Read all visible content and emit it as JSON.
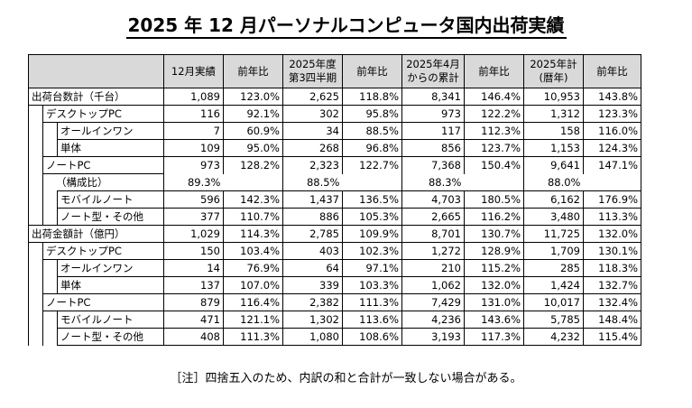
{
  "title": "2025 年 12 月パーソナルコンピュータ国内出荷実績",
  "headers": [
    "",
    "12月実績",
    "前年比",
    "2025年度 第3四半期",
    "前年比",
    "2025年4月 からの累計",
    "前年比",
    "2025年計 (暦年)",
    "前年比"
  ],
  "rows": [
    {
      "level": 0,
      "label": "出荷台数計（千台）",
      "values": [
        "1,089",
        "123.0%",
        "2,625",
        "118.8%",
        "8,341",
        "146.4%",
        "10,953",
        "143.8%"
      ]
    },
    {
      "level": 1,
      "label": "デスクトップPC",
      "values": [
        "116",
        "92.1%",
        "302",
        "95.8%",
        "973",
        "122.2%",
        "1,312",
        "123.3%"
      ]
    },
    {
      "level": 2,
      "label": "オールインワン",
      "values": [
        "7",
        "60.9%",
        "34",
        "88.5%",
        "117",
        "112.3%",
        "158",
        "116.0%"
      ]
    },
    {
      "level": 2,
      "label": "単体",
      "values": [
        "109",
        "95.0%",
        "268",
        "96.8%",
        "856",
        "123.7%",
        "1,153",
        "124.3%"
      ]
    },
    {
      "level": 1,
      "label": "ノートPC",
      "values": [
        "973",
        "128.2%",
        "2,323",
        "122.7%",
        "7,368",
        "150.4%",
        "9,641",
        "147.1%"
      ]
    },
    {
      "level": 1,
      "label": "（構成比）",
      "ratio": true,
      "values": [
        "89.3%",
        "",
        "88.5%",
        "",
        "88.3%",
        "",
        "88.0%",
        ""
      ]
    },
    {
      "level": 2,
      "label": "モバイルノート",
      "values": [
        "596",
        "142.3%",
        "1,437",
        "136.5%",
        "4,703",
        "180.5%",
        "6,162",
        "176.9%"
      ]
    },
    {
      "level": 2,
      "label": "ノート型・その他",
      "values": [
        "377",
        "110.7%",
        "886",
        "105.3%",
        "2,665",
        "116.2%",
        "3,480",
        "113.3%"
      ]
    },
    {
      "level": 0,
      "label": "出荷金額計（億円）",
      "values": [
        "1,029",
        "114.3%",
        "2,785",
        "109.9%",
        "8,701",
        "130.7%",
        "11,725",
        "132.0%"
      ]
    },
    {
      "level": 1,
      "label": "デスクトップPC",
      "values": [
        "150",
        "103.4%",
        "403",
        "102.3%",
        "1,272",
        "128.9%",
        "1,709",
        "130.1%"
      ]
    },
    {
      "level": 2,
      "label": "オールインワン",
      "values": [
        "14",
        "76.9%",
        "64",
        "97.1%",
        "210",
        "115.2%",
        "285",
        "118.3%"
      ]
    },
    {
      "level": 2,
      "label": "単体",
      "values": [
        "137",
        "107.0%",
        "339",
        "103.3%",
        "1,062",
        "132.0%",
        "1,424",
        "132.7%"
      ]
    },
    {
      "level": 1,
      "label": "ノートPC",
      "values": [
        "879",
        "116.4%",
        "2,382",
        "111.3%",
        "7,429",
        "131.0%",
        "10,017",
        "132.4%"
      ]
    },
    {
      "level": 2,
      "label": "モバイルノート",
      "values": [
        "471",
        "121.1%",
        "1,302",
        "113.6%",
        "4,236",
        "143.6%",
        "5,785",
        "148.4%"
      ]
    },
    {
      "level": 2,
      "label": "ノート型・その他",
      "values": [
        "408",
        "111.3%",
        "1,080",
        "108.6%",
        "3,193",
        "117.3%",
        "4,232",
        "115.4%"
      ]
    }
  ],
  "note": "［注］四捨五入のため、内訳の和と合計が一致しない場合がある。"
}
